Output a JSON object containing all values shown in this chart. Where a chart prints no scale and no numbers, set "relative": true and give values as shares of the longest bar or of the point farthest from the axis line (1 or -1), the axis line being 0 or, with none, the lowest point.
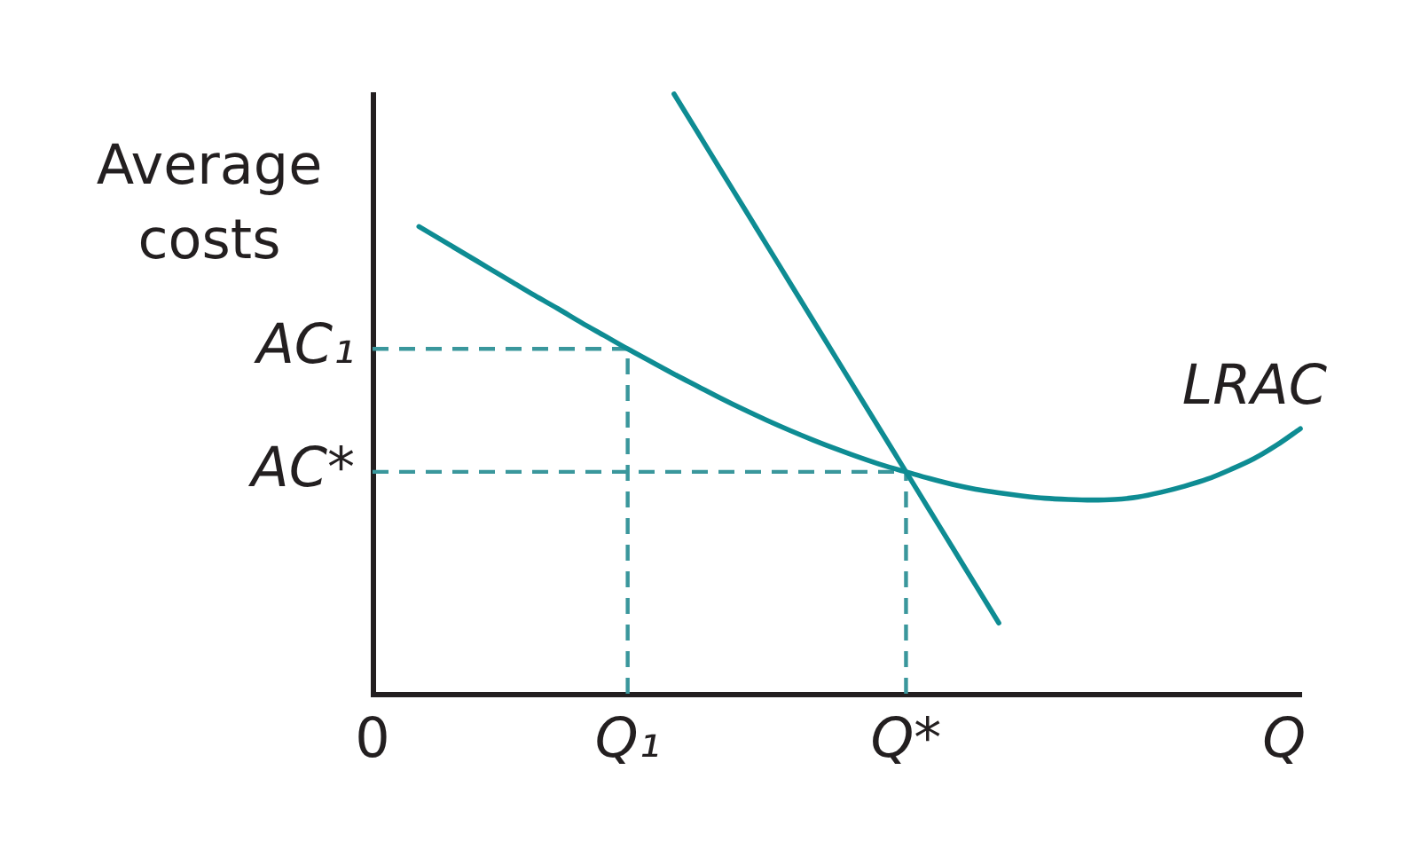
{
  "chart_data": {
    "type": "line",
    "xlabel": "Q",
    "ylabel": "Average costs",
    "relative": true,
    "marker": "none",
    "categories": [
      "0",
      null,
      null,
      null,
      null,
      null,
      null,
      null,
      null,
      null,
      null,
      "Q₁",
      null,
      null,
      null,
      null,
      null,
      null,
      null,
      null,
      null,
      null,
      null,
      "Q*",
      null,
      null,
      null,
      null,
      null,
      null,
      null,
      null,
      null,
      null,
      null,
      null,
      null,
      null,
      null,
      null,
      null
    ],
    "series": [
      {
        "name": "LRAC",
        "color": "#0e8c93",
        "values": [
          null,
          null,
          0.779,
          0.756,
          0.733,
          0.71,
          0.687,
          0.664,
          0.642,
          0.619,
          0.597,
          0.575,
          0.554,
          0.533,
          0.513,
          0.493,
          0.474,
          0.456,
          0.439,
          0.423,
          0.408,
          0.394,
          0.381,
          0.37,
          0.359,
          0.349,
          0.341,
          0.335,
          0.33,
          0.326,
          0.324,
          0.323,
          0.324,
          0.328,
          0.336,
          0.346,
          0.358,
          0.374,
          0.392,
          0.415,
          0.442
        ]
      },
      {
        "color": "#0e8c93",
        "values": [
          null,
          null,
          null,
          null,
          null,
          null,
          null,
          null,
          null,
          null,
          null,
          null,
          null,
          1,
          0.937,
          0.874,
          0.811,
          0.748,
          0.685,
          0.622,
          0.559,
          0.496,
          0.433,
          0.37,
          0.307,
          0.244,
          0.181,
          0.118,
          null,
          null,
          null,
          null,
          null,
          null,
          null,
          null,
          null,
          null,
          null,
          null,
          null
        ]
      }
    ],
    "ref_lines": [
      {
        "axis": "y",
        "value": 0.575,
        "label": "AC₁",
        "color": "#3a979c",
        "line_style": "dashed"
      },
      {
        "axis": "y",
        "value": 0.37,
        "label": "AC*",
        "color": "#3a979c",
        "line_style": "dashed"
      },
      {
        "axis": "x",
        "value": "Q₁",
        "color": "#3a979c",
        "line_style": "dashed"
      },
      {
        "axis": "x",
        "value": "Q*",
        "color": "#3a979c",
        "line_style": "dashed"
      }
    ]
  }
}
